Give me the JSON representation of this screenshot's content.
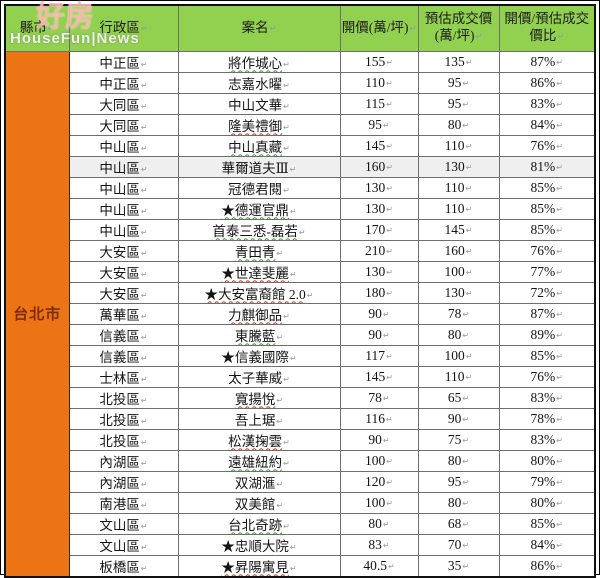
{
  "watermark": {
    "line1": "好房",
    "line2": "HouseFun|News"
  },
  "colors": {
    "header_green": "#92D050",
    "city_orange": "#EC7414",
    "city_text": "#7D2C05",
    "squiggle_green": "#3aa02c",
    "squiggle_red": "#d03a2a"
  },
  "table": {
    "cell_mark": "↵",
    "city_label": "台北市",
    "columns": [
      "縣市",
      "行政區",
      "案名",
      "開價(萬/坪)",
      "預估成交價(萬/坪)",
      "開價/預估成交價比"
    ],
    "rows": [
      {
        "district": "中正區",
        "name": "將作城心",
        "open": "155",
        "est": "135",
        "ratio": "87%",
        "underline": "green",
        "shaded": false
      },
      {
        "district": "中正區",
        "name": "志嘉水曜",
        "open": "110",
        "est": "95",
        "ratio": "86%",
        "underline": "none",
        "shaded": false
      },
      {
        "district": "大同區",
        "name": "中山文華",
        "open": "115",
        "est": "95",
        "ratio": "83%",
        "underline": "none",
        "shaded": false
      },
      {
        "district": "大同區",
        "name": "隆美禮御",
        "open": "95",
        "est": "80",
        "ratio": "84%",
        "underline": "red",
        "shaded": false
      },
      {
        "district": "中山區",
        "name": "中山真藏",
        "open": "145",
        "est": "110",
        "ratio": "76%",
        "underline": "green",
        "shaded": false
      },
      {
        "district": "中山區",
        "name": "華爾道夫Ⅲ",
        "open": "160",
        "est": "130",
        "ratio": "81%",
        "underline": "none",
        "shaded": true
      },
      {
        "district": "中山區",
        "name": "冠德君閱",
        "open": "130",
        "est": "110",
        "ratio": "85%",
        "underline": "none",
        "shaded": false
      },
      {
        "district": "中山區",
        "name": "★德運官鼎",
        "open": "130",
        "est": "110",
        "ratio": "85%",
        "underline": "green",
        "shaded": false
      },
      {
        "district": "中山區",
        "name": "首泰三悉-磊若",
        "open": "170",
        "est": "145",
        "ratio": "85%",
        "underline": "green",
        "shaded": false
      },
      {
        "district": "大安區",
        "name": "青田青",
        "open": "210",
        "est": "160",
        "ratio": "76%",
        "underline": "green",
        "shaded": false
      },
      {
        "district": "大安區",
        "name": "★世達斐麗",
        "open": "130",
        "est": "100",
        "ratio": "77%",
        "underline": "red",
        "shaded": false
      },
      {
        "district": "大安區",
        "name": "★大安富裔館 2.0",
        "open": "180",
        "est": "130",
        "ratio": "72%",
        "underline": "red",
        "shaded": false
      },
      {
        "district": "萬華區",
        "name": "力麒御品",
        "open": "90",
        "est": "78",
        "ratio": "87%",
        "underline": "red",
        "shaded": false
      },
      {
        "district": "信義區",
        "name": "東騰藍",
        "open": "90",
        "est": "80",
        "ratio": "89%",
        "underline": "green",
        "shaded": false
      },
      {
        "district": "信義區",
        "name": "★信義國際",
        "open": "117",
        "est": "100",
        "ratio": "85%",
        "underline": "none",
        "shaded": false
      },
      {
        "district": "士林區",
        "name": "太子華威",
        "open": "145",
        "est": "110",
        "ratio": "76%",
        "underline": "none",
        "shaded": false
      },
      {
        "district": "北投區",
        "name": "寬揚悅",
        "open": "78",
        "est": "65",
        "ratio": "83%",
        "underline": "red",
        "shaded": false
      },
      {
        "district": "北投區",
        "name": "吾上琚",
        "open": "116",
        "est": "90",
        "ratio": "78%",
        "underline": "none",
        "shaded": false
      },
      {
        "district": "北投區",
        "name": "松漢掬雲",
        "open": "90",
        "est": "75",
        "ratio": "83%",
        "underline": "red",
        "shaded": false
      },
      {
        "district": "內湖區",
        "name": "遠雄紐約",
        "open": "100",
        "est": "80",
        "ratio": "80%",
        "underline": "green",
        "shaded": false
      },
      {
        "district": "內湖區",
        "name": "双湖滙",
        "open": "120",
        "est": "95",
        "ratio": "79%",
        "underline": "none",
        "shaded": false
      },
      {
        "district": "南港區",
        "name": "双美館",
        "open": "100",
        "est": "80",
        "ratio": "80%",
        "underline": "none",
        "shaded": false
      },
      {
        "district": "文山區",
        "name": "台北奇跡",
        "open": "80",
        "est": "68",
        "ratio": "85%",
        "underline": "green",
        "shaded": false
      },
      {
        "district": "文山區",
        "name": "★忠順大院",
        "open": "83",
        "est": "70",
        "ratio": "84%",
        "underline": "none",
        "shaded": false
      },
      {
        "district": "板橋區",
        "name": "★昇陽寓見",
        "open": "40.5",
        "est": "35",
        "ratio": "86%",
        "underline": "red",
        "shaded": false
      }
    ]
  }
}
